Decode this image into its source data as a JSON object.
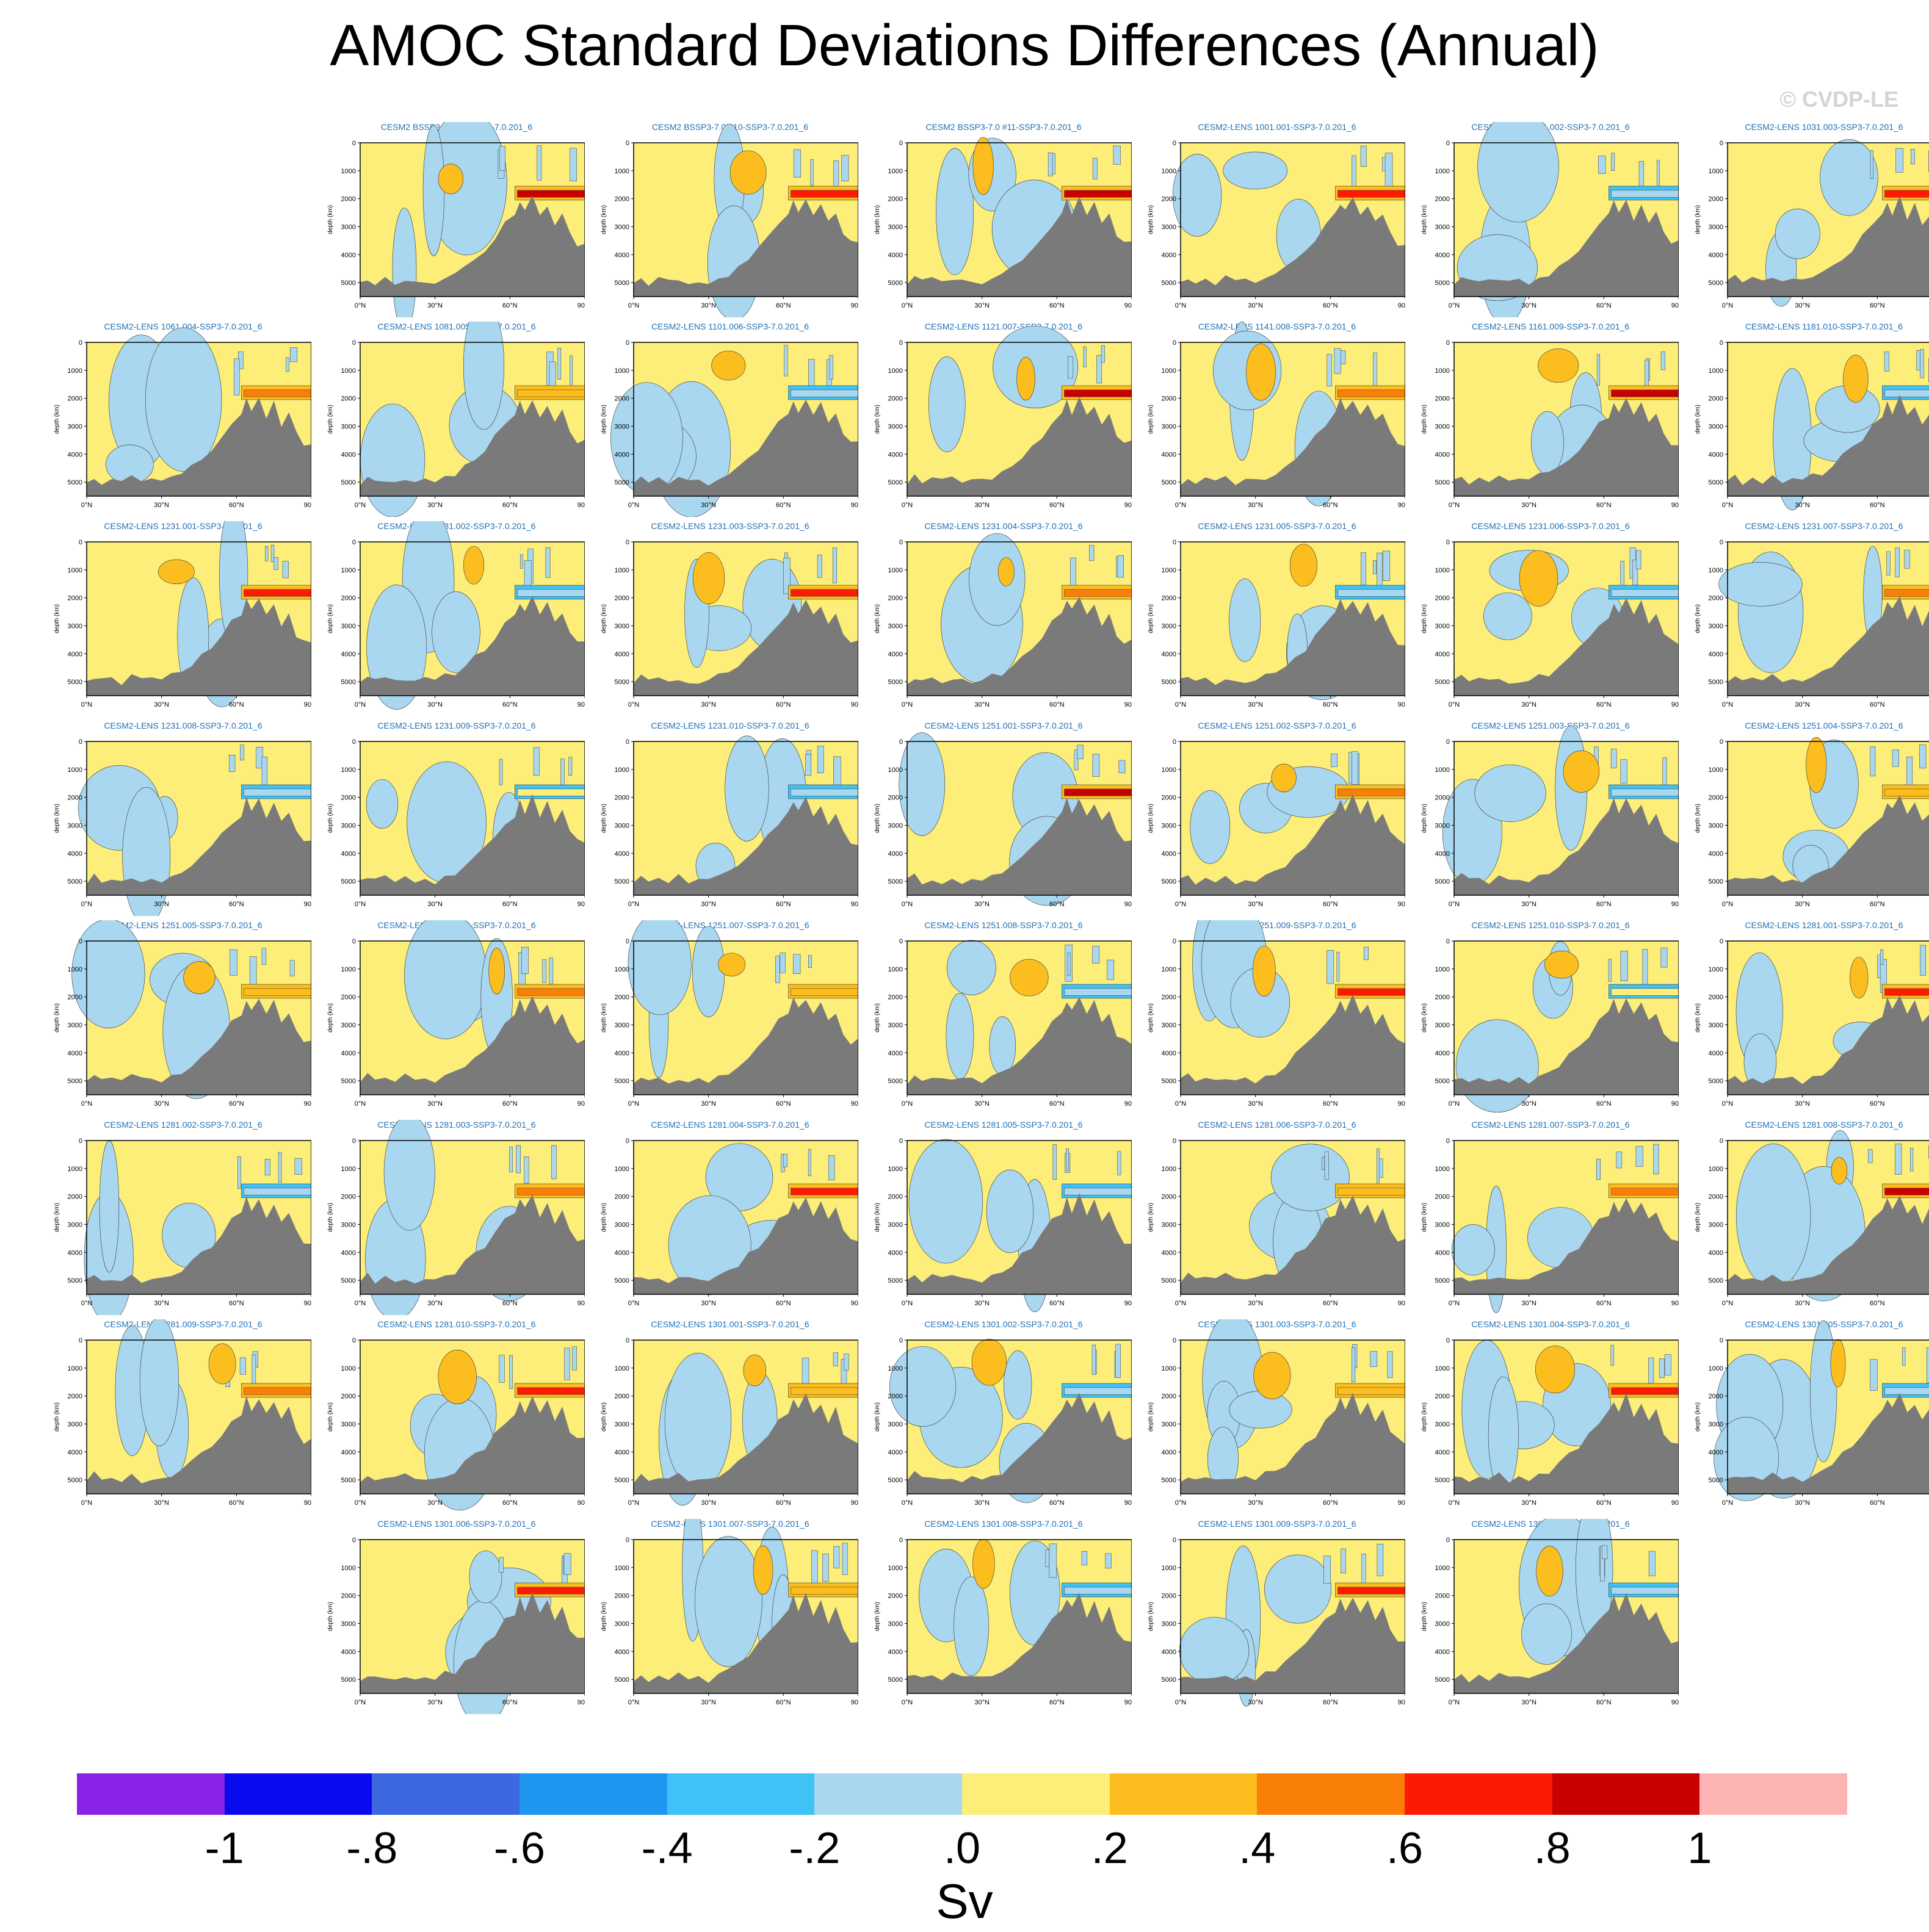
{
  "title": "AMOC Standard Deviations Differences (Annual)",
  "watermark": "© CVDP-LE",
  "units": "Sv",
  "chart_data": {
    "type": "heatmap",
    "title": "AMOC Standard Deviations Differences (Annual)",
    "ylabel": "depth (km)",
    "xlabel": "",
    "y_ticks": [
      "0",
      "1000",
      "2000",
      "3000",
      "4000",
      "5000"
    ],
    "x_ticks": [
      "0°N",
      "30°N",
      "60°N",
      "90°N"
    ],
    "ylim": [
      0,
      5500
    ],
    "xlim": [
      0,
      90
    ],
    "panels": [
      {
        "title": "CESM2 BSSP3-7.0 #4-SSP3-7.0.201_6",
        "row": 0,
        "col": 1,
        "hot": 0.8
      },
      {
        "title": "CESM2 BSSP3-7.0 #10-SSP3-7.0.201_6",
        "row": 0,
        "col": 2,
        "hot": 0.6
      },
      {
        "title": "CESM2 BSSP3-7.0 #11-SSP3-7.0.201_6",
        "row": 0,
        "col": 3,
        "hot": 0.8
      },
      {
        "title": "CESM2-LENS 1001.001-SSP3-7.0.201_6",
        "row": 0,
        "col": 4,
        "hot": 0.6
      },
      {
        "title": "CESM2-LENS 1021.002-SSP3-7.0.201_6",
        "row": 0,
        "col": 5,
        "hot": -0.2
      },
      {
        "title": "CESM2-LENS 1031.003-SSP3-7.0.201_6",
        "row": 0,
        "col": 6,
        "hot": 0.6
      },
      {
        "title": "CESM2-LENS 1061.004-SSP3-7.0.201_6",
        "row": 1,
        "col": 0,
        "hot": 0.4
      },
      {
        "title": "CESM2-LENS 1081.005-SSP3-7.0.201_6",
        "row": 1,
        "col": 1,
        "hot": 0.2
      },
      {
        "title": "CESM2-LENS 1101.006-SSP3-7.0.201_6",
        "row": 1,
        "col": 2,
        "hot": -0.2
      },
      {
        "title": "CESM2-LENS 1121.007-SSP3-7.0.201_6",
        "row": 1,
        "col": 3,
        "hot": 0.8
      },
      {
        "title": "CESM2-LENS 1141.008-SSP3-7.0.201_6",
        "row": 1,
        "col": 4,
        "hot": 0.4
      },
      {
        "title": "CESM2-LENS 1161.009-SSP3-7.0.201_6",
        "row": 1,
        "col": 5,
        "hot": 0.8
      },
      {
        "title": "CESM2-LENS 1181.010-SSP3-7.0.201_6",
        "row": 1,
        "col": 6,
        "hot": -0.2
      },
      {
        "title": "CESM2-LENS 1231.001-SSP3-7.0.201_6",
        "row": 2,
        "col": 0,
        "hot": 0.6
      },
      {
        "title": "CESM2-LENS 1231.002-SSP3-7.0.201_6",
        "row": 2,
        "col": 1,
        "hot": -0.2
      },
      {
        "title": "CESM2-LENS 1231.003-SSP3-7.0.201_6",
        "row": 2,
        "col": 2,
        "hot": 0.6
      },
      {
        "title": "CESM2-LENS 1231.004-SSP3-7.0.201_6",
        "row": 2,
        "col": 3,
        "hot": 0.4
      },
      {
        "title": "CESM2-LENS 1231.005-SSP3-7.0.201_6",
        "row": 2,
        "col": 4,
        "hot": -0.2
      },
      {
        "title": "CESM2-LENS 1231.006-SSP3-7.0.201_6",
        "row": 2,
        "col": 5,
        "hot": -0.2
      },
      {
        "title": "CESM2-LENS 1231.007-SSP3-7.0.201_6",
        "row": 2,
        "col": 6,
        "hot": 0.4
      },
      {
        "title": "CESM2-LENS 1231.008-SSP3-7.0.201_6",
        "row": 3,
        "col": 0,
        "hot": -0.2
      },
      {
        "title": "CESM2-LENS 1231.009-SSP3-7.0.201_6",
        "row": 3,
        "col": 1,
        "hot": 0.0
      },
      {
        "title": "CESM2-LENS 1231.010-SSP3-7.0.201_6",
        "row": 3,
        "col": 2,
        "hot": -0.2
      },
      {
        "title": "CESM2-LENS 1251.001-SSP3-7.0.201_6",
        "row": 3,
        "col": 3,
        "hot": 0.8
      },
      {
        "title": "CESM2-LENS 1251.002-SSP3-7.0.201_6",
        "row": 3,
        "col": 4,
        "hot": 0.4
      },
      {
        "title": "CESM2-LENS 1251.003-SSP3-7.0.201_6",
        "row": 3,
        "col": 5,
        "hot": -0.2
      },
      {
        "title": "CESM2-LENS 1251.004-SSP3-7.0.201_6",
        "row": 3,
        "col": 6,
        "hot": 0.2
      },
      {
        "title": "CESM2-LENS 1251.005-SSP3-7.0.201_6",
        "row": 4,
        "col": 0,
        "hot": 0.2
      },
      {
        "title": "CESM2-LENS 1251.006-SSP3-7.0.201_6",
        "row": 4,
        "col": 1,
        "hot": 0.4
      },
      {
        "title": "CESM2-LENS 1251.007-SSP3-7.0.201_6",
        "row": 4,
        "col": 2,
        "hot": 0.2
      },
      {
        "title": "CESM2-LENS 1251.008-SSP3-7.0.201_6",
        "row": 4,
        "col": 3,
        "hot": -0.2
      },
      {
        "title": "CESM2-LENS 1251.009-SSP3-7.0.201_6",
        "row": 4,
        "col": 4,
        "hot": 0.6
      },
      {
        "title": "CESM2-LENS 1251.010-SSP3-7.0.201_6",
        "row": 4,
        "col": 5,
        "hot": 0.0
      },
      {
        "title": "CESM2-LENS 1281.001-SSP3-7.0.201_6",
        "row": 4,
        "col": 6,
        "hot": 0.6
      },
      {
        "title": "CESM2-LENS 1281.002-SSP3-7.0.201_6",
        "row": 5,
        "col": 0,
        "hot": -0.2
      },
      {
        "title": "CESM2-LENS 1281.003-SSP3-7.0.201_6",
        "row": 5,
        "col": 1,
        "hot": 0.4
      },
      {
        "title": "CESM2-LENS 1281.004-SSP3-7.0.201_6",
        "row": 5,
        "col": 2,
        "hot": 0.6
      },
      {
        "title": "CESM2-LENS 1281.005-SSP3-7.0.201_6",
        "row": 5,
        "col": 3,
        "hot": -0.2
      },
      {
        "title": "CESM2-LENS 1281.006-SSP3-7.0.201_6",
        "row": 5,
        "col": 4,
        "hot": 0.2
      },
      {
        "title": "CESM2-LENS 1281.007-SSP3-7.0.201_6",
        "row": 5,
        "col": 5,
        "hot": 0.4
      },
      {
        "title": "CESM2-LENS 1281.008-SSP3-7.0.201_6",
        "row": 5,
        "col": 6,
        "hot": 0.8
      },
      {
        "title": "CESM2-LENS 1281.009-SSP3-7.0.201_6",
        "row": 6,
        "col": 0,
        "hot": 0.4
      },
      {
        "title": "CESM2-LENS 1281.010-SSP3-7.0.201_6",
        "row": 6,
        "col": 1,
        "hot": 0.6
      },
      {
        "title": "CESM2-LENS 1301.001-SSP3-7.0.201_6",
        "row": 6,
        "col": 2,
        "hot": 0.2
      },
      {
        "title": "CESM2-LENS 1301.002-SSP3-7.0.201_6",
        "row": 6,
        "col": 3,
        "hot": -0.2
      },
      {
        "title": "CESM2-LENS 1301.003-SSP3-7.0.201_6",
        "row": 6,
        "col": 4,
        "hot": 0.2
      },
      {
        "title": "CESM2-LENS 1301.004-SSP3-7.0.201_6",
        "row": 6,
        "col": 5,
        "hot": 0.6
      },
      {
        "title": "CESM2-LENS 1301.005-SSP3-7.0.201_6",
        "row": 6,
        "col": 6,
        "hot": -0.2
      },
      {
        "title": "CESM2-LENS 1301.006-SSP3-7.0.201_6",
        "row": 7,
        "col": 1,
        "hot": 0.6
      },
      {
        "title": "CESM2-LENS 1301.007-SSP3-7.0.201_6",
        "row": 7,
        "col": 2,
        "hot": 0.2
      },
      {
        "title": "CESM2-LENS 1301.008-SSP3-7.0.201_6",
        "row": 7,
        "col": 3,
        "hot": -0.2
      },
      {
        "title": "CESM2-LENS 1301.009-SSP3-7.0.201_6",
        "row": 7,
        "col": 4,
        "hot": 0.6
      },
      {
        "title": "CESM2-LENS 1301.010-SSP3-7.0.201_6",
        "row": 7,
        "col": 5,
        "hot": -0.2
      }
    ],
    "colorbar": {
      "colors": [
        "#8b22e6",
        "#0a0aef",
        "#3d67e0",
        "#1f96ef",
        "#3fc2f5",
        "#a9d7f0",
        "#fcee79",
        "#fbbe1e",
        "#fa7f08",
        "#fd1a05",
        "#c80001",
        "#feb3b3"
      ],
      "labels": [
        "-1",
        "-.8",
        "-.6",
        "-.4",
        "-.2",
        ".0",
        ".2",
        ".4",
        ".6",
        ".8",
        "1"
      ],
      "levels": [
        -1,
        -0.8,
        -0.6,
        -0.4,
        -0.2,
        0,
        0.2,
        0.4,
        0.6,
        0.8,
        1
      ]
    },
    "land_color": "#7a7a7a"
  }
}
